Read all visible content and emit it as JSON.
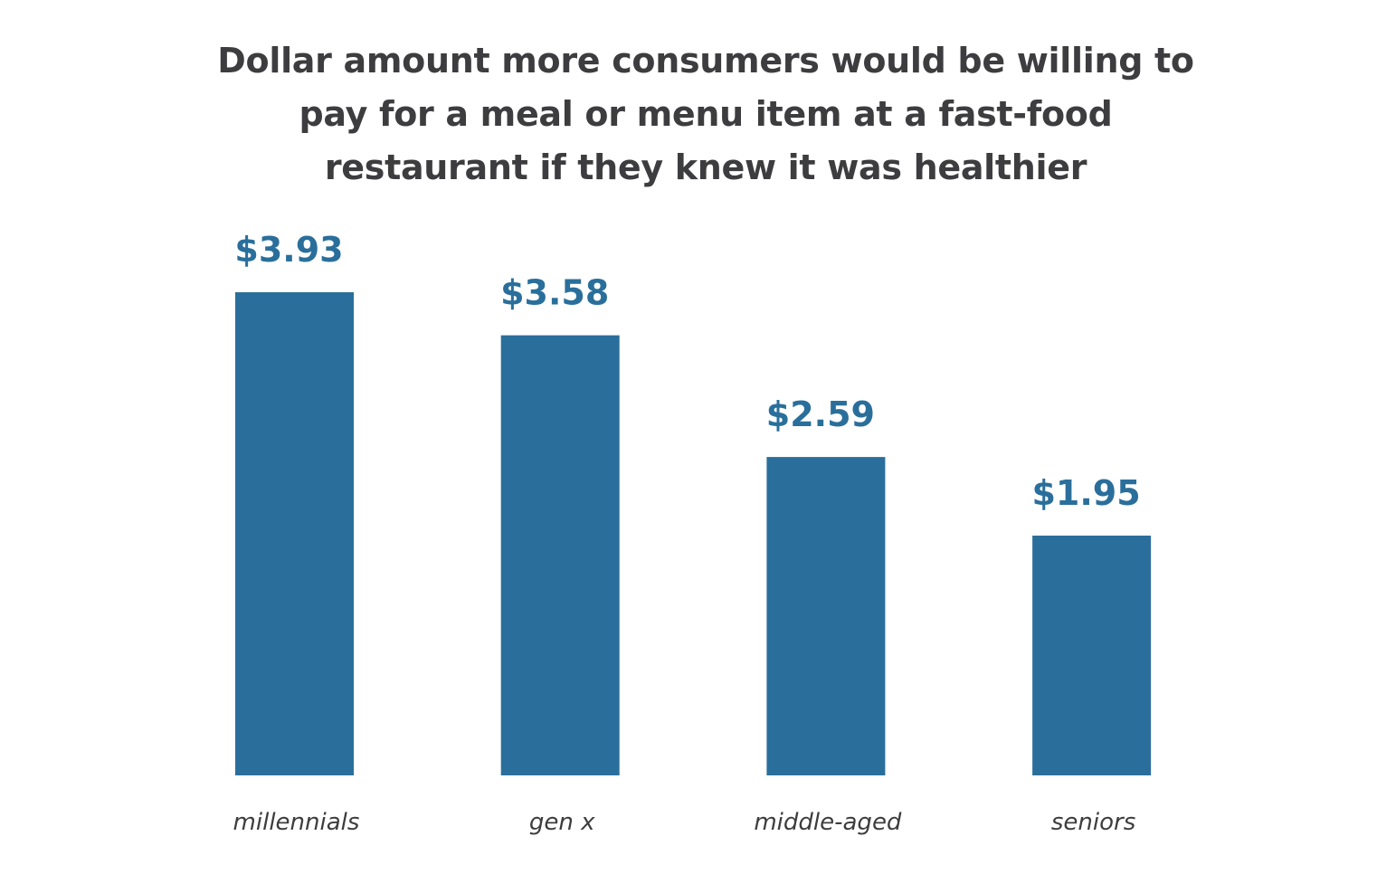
{
  "chart_data": {
    "type": "bar",
    "title": "Dollar amount more consumers would be willing to pay for a meal or menu item at a fast-food restaurant if they knew it was healthier",
    "categories": [
      "millennials",
      "gen x",
      "middle-aged",
      "seniors"
    ],
    "values": [
      3.93,
      3.58,
      2.59,
      1.95
    ],
    "value_labels": [
      "$3.93",
      "$3.58",
      "$2.59",
      "$1.95"
    ],
    "xlabel": "",
    "ylabel": "",
    "ylim": [
      0,
      3.93
    ],
    "grid": false,
    "legend": "none",
    "colors": {
      "bar": "#2a6f9b",
      "value_label": "#2a6f9b",
      "text": "#3d3d3f"
    }
  }
}
